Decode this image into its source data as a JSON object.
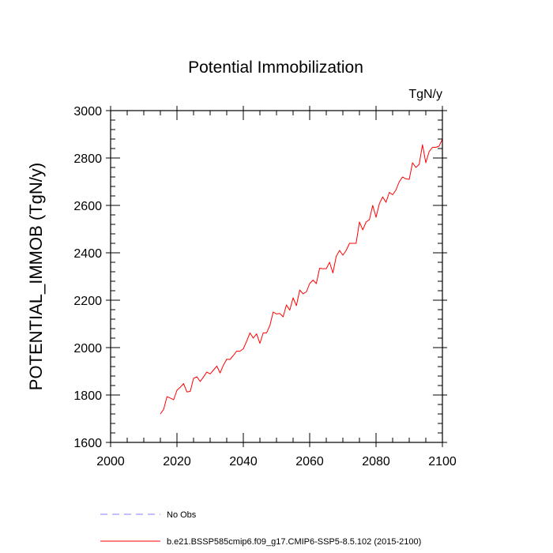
{
  "chart_data": {
    "type": "line",
    "title": "Potential Immobilization",
    "units_label": "TgN/y",
    "ylabel": "POTENTIAL_IMMOB  (TgN/y)",
    "xlabel": "",
    "xlim": [
      2000,
      2100
    ],
    "ylim": [
      1600,
      3000
    ],
    "x_ticks": [
      2000,
      2020,
      2040,
      2060,
      2080,
      2100
    ],
    "y_ticks": [
      1600,
      1800,
      2000,
      2200,
      2400,
      2600,
      2800,
      3000
    ],
    "grid": false,
    "legend_position": "bottom-left",
    "legend": [
      {
        "name": "No Obs",
        "color": "#8080ff",
        "style": "dashed"
      },
      {
        "name": "b.e21.BSSP585cmip6.f09_g17.CMIP6-SSP5-8.5.102 (2015-2100)",
        "color": "#ff0000",
        "style": "solid"
      }
    ],
    "series": [
      {
        "name": "b.e21.BSSP585cmip6.f09_g17.CMIP6-SSP5-8.5.102 (2015-2100)",
        "color": "#ff0000",
        "x": [
          2015,
          2016,
          2017,
          2018,
          2019,
          2020,
          2021,
          2022,
          2023,
          2024,
          2025,
          2026,
          2027,
          2028,
          2029,
          2030,
          2031,
          2032,
          2033,
          2034,
          2035,
          2036,
          2037,
          2038,
          2039,
          2040,
          2041,
          2042,
          2043,
          2044,
          2045,
          2046,
          2047,
          2048,
          2049,
          2050,
          2051,
          2052,
          2053,
          2054,
          2055,
          2056,
          2057,
          2058,
          2059,
          2060,
          2061,
          2062,
          2063,
          2064,
          2065,
          2066,
          2067,
          2068,
          2069,
          2070,
          2071,
          2072,
          2073,
          2074,
          2075,
          2076,
          2077,
          2078,
          2079,
          2080,
          2081,
          2082,
          2083,
          2084,
          2085,
          2086,
          2087,
          2088,
          2089,
          2090,
          2091,
          2092,
          2093,
          2094,
          2095,
          2096,
          2097,
          2098,
          2099,
          2100
        ],
        "y": [
          1720,
          1740,
          1793,
          1787,
          1780,
          1820,
          1833,
          1848,
          1813,
          1815,
          1870,
          1877,
          1857,
          1876,
          1897,
          1889,
          1905,
          1922,
          1893,
          1926,
          1951,
          1950,
          1967,
          1985,
          1985,
          1995,
          2027,
          2062,
          2040,
          2058,
          2018,
          2062,
          2062,
          2093,
          2150,
          2142,
          2144,
          2130,
          2180,
          2158,
          2210,
          2177,
          2243,
          2227,
          2235,
          2270,
          2285,
          2270,
          2335,
          2333,
          2333,
          2360,
          2315,
          2385,
          2410,
          2390,
          2410,
          2440,
          2440,
          2440,
          2530,
          2497,
          2530,
          2540,
          2600,
          2550,
          2607,
          2636,
          2613,
          2655,
          2645,
          2665,
          2700,
          2720,
          2712,
          2710,
          2780,
          2760,
          2773,
          2856,
          2780,
          2827,
          2845,
          2845,
          2850,
          2880
        ]
      }
    ]
  }
}
